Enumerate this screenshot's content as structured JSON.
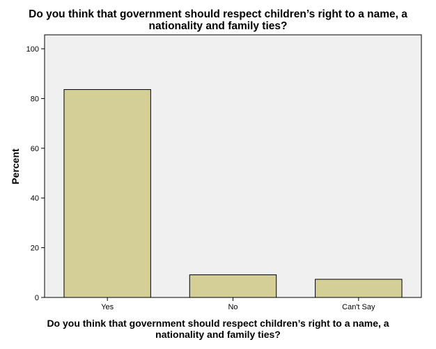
{
  "chart_data": {
    "type": "bar",
    "title_lines": [
      "Do you think that government should respect children’s right to a name, a",
      "nationality and family ties?"
    ],
    "xlabel_lines": [
      "Do you think that government should respect children’s right to a name, a",
      "nationality and family ties?"
    ],
    "ylabel": "Percent",
    "categories": [
      "Yes",
      "No",
      "Can't Say"
    ],
    "values": [
      83.6,
      9.1,
      7.3
    ],
    "ylim": [
      0,
      100
    ],
    "yticks": [
      "0",
      "20",
      "40",
      "60",
      "80",
      "100"
    ],
    "grid": false,
    "legend": "none",
    "colors": {
      "bar_fill": "#d4cf97",
      "bar_stroke": "#000000",
      "plot_background": "#f0f0f0",
      "plot_border": "#000000"
    }
  }
}
